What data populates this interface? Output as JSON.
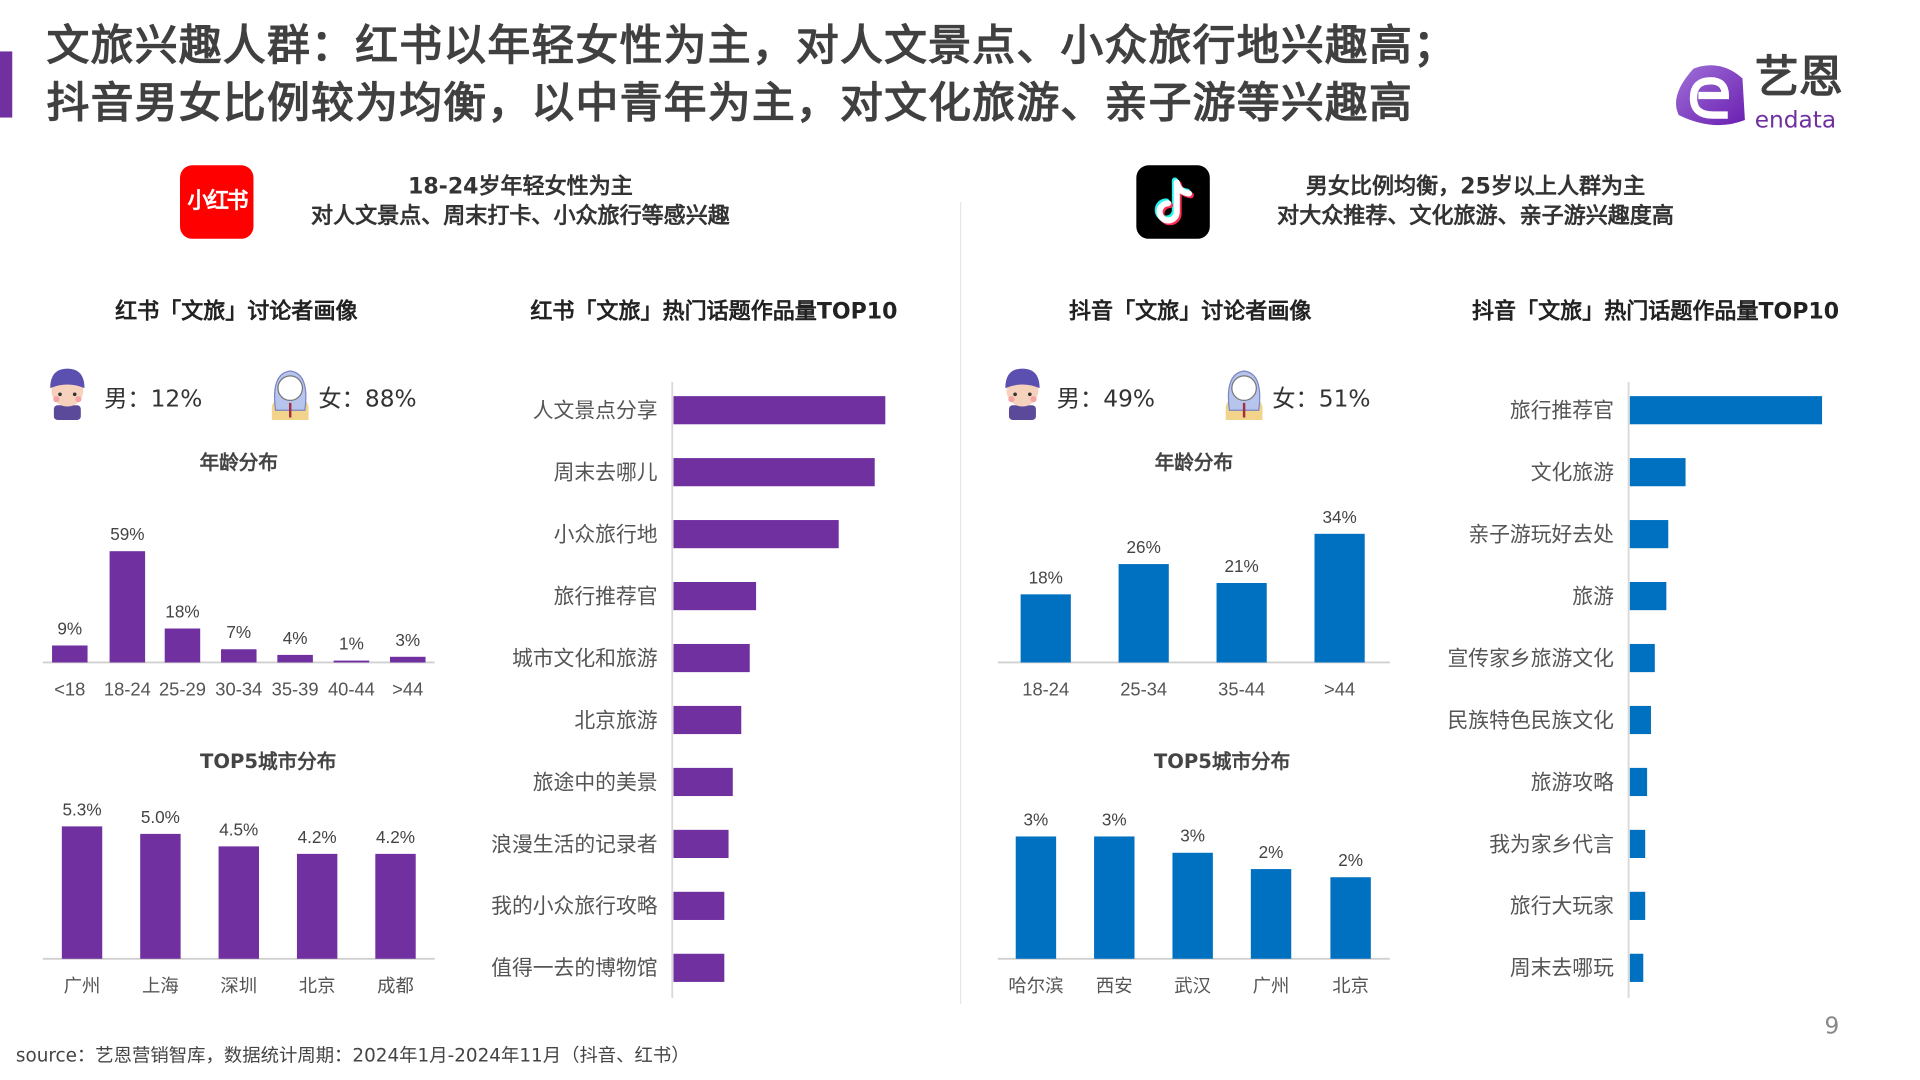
{
  "title_line1": "文旅兴趣人群：红书以年轻女性为主，对人文景点、小众旅行地兴趣高；",
  "title_line2": "抖音男女比例较为均衡，以中青年为主，对文化旅游、亲子游等兴趣高",
  "logo": {
    "cn": "艺恩",
    "en": "endata",
    "color": "#7030a0"
  },
  "colors": {
    "xhs": "#7030a0",
    "douyin": "#0070c0",
    "xhs_logo": "#ff0000",
    "douyin_logo": "#000000"
  },
  "xhs": {
    "logo_text": "小红书",
    "summary1": "18-24岁年轻女性为主",
    "summary2": "对人文景点、周末打卡、小众旅行等感兴趣",
    "portrait_title": "红书「文旅」讨论者画像",
    "top10_title": "红书「文旅」热门话题作品量TOP10",
    "male": "男：12%",
    "female": "女：88%",
    "age_title": "年龄分布",
    "city_title": "TOP5城市分布"
  },
  "douyin": {
    "summary1": "男女比例均衡，25岁以上人群为主",
    "summary2": "对大众推荐、文化旅游、亲子游兴趣度高",
    "portrait_title": "抖音「文旅」讨论者画像",
    "top10_title": "抖音「文旅」热门话题作品量TOP10",
    "male": "男：49%",
    "female": "女：51%",
    "age_title": "年龄分布",
    "city_title": "TOP5城市分布"
  },
  "chart_data": [
    {
      "id": "xhs_age",
      "type": "bar",
      "categories": [
        "<18",
        "18-24",
        "25-29",
        "30-34",
        "35-39",
        "40-44",
        ">44"
      ],
      "values": [
        9,
        59,
        18,
        7,
        4,
        1,
        3
      ],
      "labels": [
        "9%",
        "59%",
        "18%",
        "7%",
        "4%",
        "1%",
        "3%"
      ],
      "unit": "%"
    },
    {
      "id": "xhs_city",
      "type": "bar",
      "categories": [
        "广州",
        "上海",
        "深圳",
        "北京",
        "成都"
      ],
      "values": [
        5.3,
        5.0,
        4.5,
        4.2,
        4.2
      ],
      "labels": [
        "5.3%",
        "5.0%",
        "4.5%",
        "4.2%",
        "4.2%"
      ],
      "unit": "%"
    },
    {
      "id": "xhs_top10",
      "type": "bar",
      "orientation": "horizontal",
      "categories": [
        "人文景点分享",
        "周末去哪儿",
        "小众旅行地",
        "旅行推荐官",
        "城市文化和旅游",
        "北京旅游",
        "旅途中的美景",
        "浪漫生活的记录者",
        "我的小众旅行攻略",
        "值得一去的博物馆"
      ],
      "values": [
        100,
        95,
        78,
        39,
        36,
        32,
        28,
        26,
        24,
        24
      ],
      "note_values": "relative bar length, unlabeled"
    },
    {
      "id": "douyin_age",
      "type": "bar",
      "categories": [
        "18-24",
        "25-34",
        "35-44",
        ">44"
      ],
      "values": [
        18,
        26,
        21,
        34
      ],
      "labels": [
        "18%",
        "26%",
        "21%",
        "34%"
      ],
      "unit": "%"
    },
    {
      "id": "douyin_city",
      "type": "bar",
      "categories": [
        "哈尔滨",
        "西安",
        "武汉",
        "广州",
        "北京"
      ],
      "values": [
        3.0,
        3.0,
        2.6,
        2.2,
        2.0
      ],
      "labels": [
        "3%",
        "3%",
        "3%",
        "2%",
        "2%"
      ],
      "unit": "%"
    },
    {
      "id": "douyin_top10",
      "type": "bar",
      "orientation": "horizontal",
      "categories": [
        "旅行推荐官",
        "文化旅游",
        "亲子游玩好去处",
        "旅游",
        "宣传家乡旅游文化",
        "民族特色民族文化",
        "旅游攻略",
        "我为家乡代言",
        "旅行大玩家",
        "周末去哪玩"
      ],
      "values": [
        100,
        29,
        20,
        19,
        13,
        11,
        9,
        8,
        8,
        7
      ]
    }
  ],
  "source": "source：艺恩营销智库，数据统计周期：2024年1月-2024年11月（抖音、红书）",
  "page_number": "9"
}
